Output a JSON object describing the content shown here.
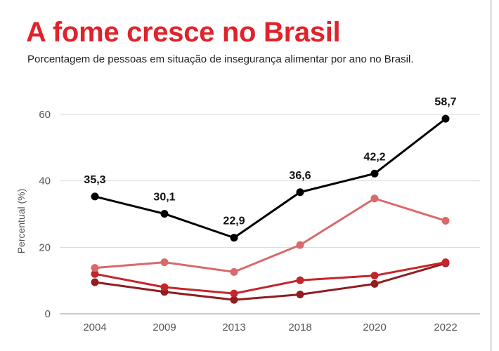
{
  "title": "A fome cresce no Brasil",
  "subtitle": "Porcentagem de pessoas em situação de insegurança alimentar por ano no Brasil.",
  "chart_data": {
    "type": "line",
    "title": "A fome cresce no Brasil",
    "subtitle": "Porcentagem de pessoas em situação de insegurança alimentar por ano no Brasil.",
    "xlabel": "",
    "ylabel": "Percentual (%)",
    "categories": [
      "2004",
      "2009",
      "2013",
      "2018",
      "2020",
      "2022"
    ],
    "ylim": [
      0,
      60
    ],
    "yticks": [
      0,
      20,
      40,
      60
    ],
    "grid": true,
    "series": [
      {
        "color": "#000000",
        "values": [
          35.3,
          30.1,
          22.9,
          36.6,
          42.2,
          58.7
        ],
        "labels": [
          "35,3",
          "30,1",
          "22,9",
          "36,6",
          "42,2",
          "58,7"
        ]
      },
      {
        "color": "#d9696b",
        "values": [
          13.8,
          15.5,
          12.6,
          20.7,
          34.7,
          28.0
        ]
      },
      {
        "color": "#c4262c",
        "values": [
          12.0,
          8.0,
          6.1,
          10.1,
          11.5,
          15.5
        ]
      },
      {
        "color": "#8f1d21",
        "values": [
          9.5,
          6.6,
          4.2,
          5.8,
          9.0,
          15.2
        ]
      }
    ]
  }
}
